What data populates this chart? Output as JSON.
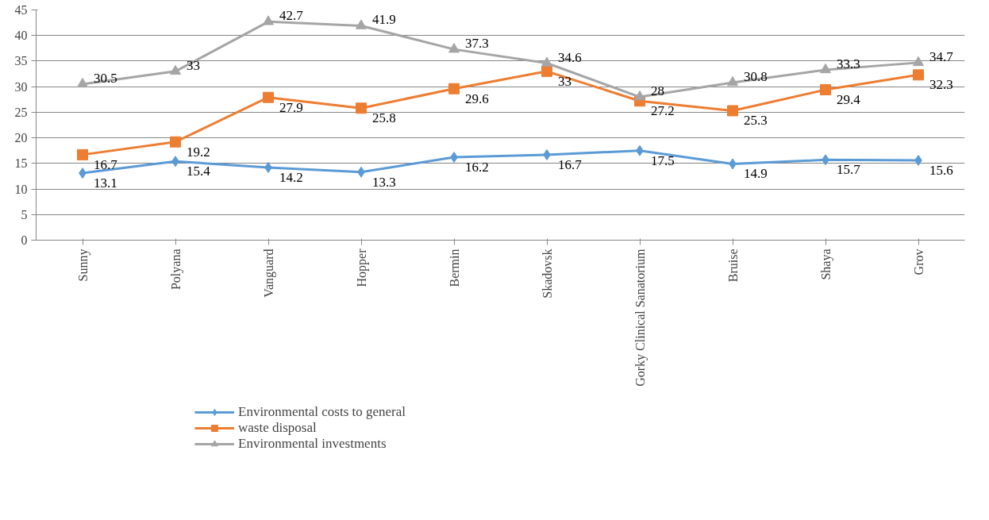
{
  "chart_data": {
    "type": "line",
    "categories": [
      "Sunny",
      "Polyana",
      "Vanguard",
      "Hopper",
      "Bermin",
      "Skadovsk",
      "Gorky Clinical Sanatorium",
      "Bruise",
      "Shaya",
      "Grov"
    ],
    "series": [
      {
        "name": "Environmental costs to general",
        "color": "#5b9bd5",
        "marker": "diamond",
        "values": [
          13.1,
          15.4,
          14.2,
          13.3,
          16.2,
          16.7,
          17.5,
          14.9,
          15.7,
          15.6
        ]
      },
      {
        "name": "waste disposal",
        "color": "#ed7d31",
        "marker": "square",
        "values": [
          16.7,
          19.2,
          27.9,
          25.8,
          29.6,
          33,
          27.2,
          25.3,
          29.4,
          32.3
        ]
      },
      {
        "name": "Environmental investments",
        "color": "#a5a5a5",
        "marker": "triangle",
        "values": [
          30.5,
          33,
          42.7,
          41.9,
          37.3,
          34.6,
          28,
          30.8,
          33.3,
          34.7
        ]
      }
    ],
    "ylim": [
      0,
      45
    ],
    "yticks": [
      0,
      5,
      10,
      15,
      20,
      25,
      30,
      35,
      40,
      45
    ],
    "grid": "y",
    "legend": "bottom",
    "data_labels": true,
    "line_style": "solid"
  }
}
